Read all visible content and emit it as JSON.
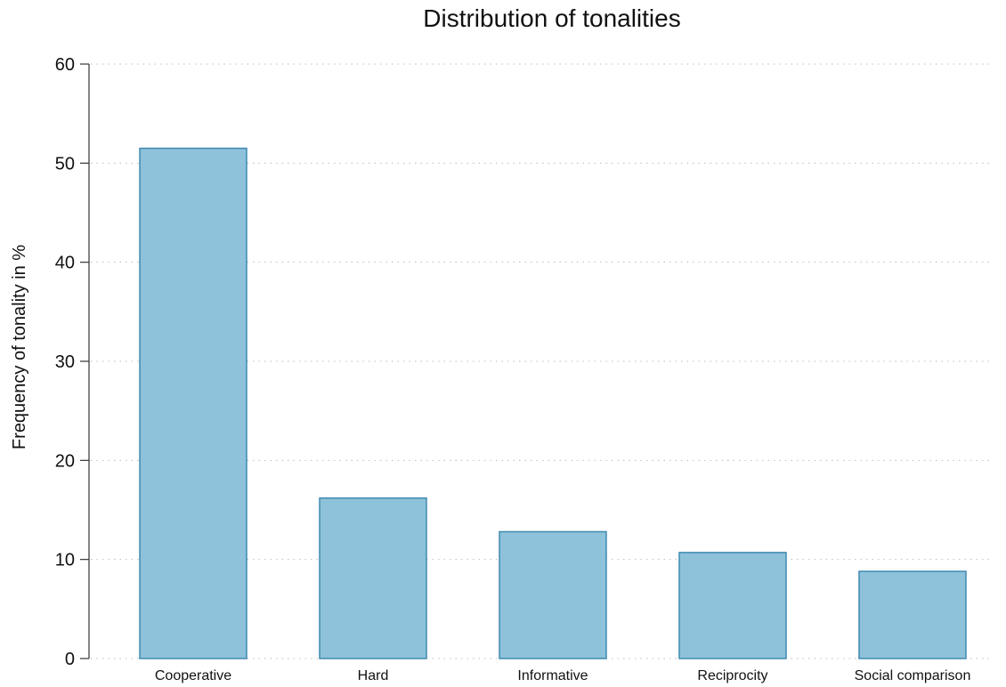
{
  "chart_data": {
    "type": "bar",
    "title": "Distribution of tonalities",
    "xlabel": "",
    "ylabel": "Frequency of tonality in %",
    "categories": [
      "Cooperative",
      "Hard",
      "Informative",
      "Reciprocity",
      "Social comparison"
    ],
    "values": [
      51.5,
      16.2,
      12.8,
      10.7,
      8.8
    ],
    "ylim": [
      0,
      60
    ],
    "yticks": [
      0,
      10,
      20,
      30,
      40,
      50,
      60
    ],
    "grid": true,
    "legend": "none",
    "colors": {
      "bar_fill": "#8ec2da",
      "bar_stroke": "#3f8ab0"
    }
  }
}
